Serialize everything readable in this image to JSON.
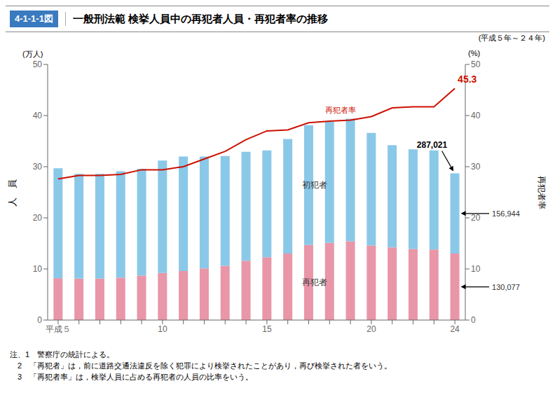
{
  "chart_data": {
    "type": "bar",
    "title_box": "4-1-1-1図",
    "title": "一般刑法範 検挙人員中の再犯者人員・再犯者率の推移",
    "subtitle": "(平成５年～２４年)",
    "ylabel": "人　員",
    "ylabel_unit": "(万人)",
    "y2label": "再犯者率",
    "y2label_unit": "(%)",
    "categories": [
      "平成５",
      null,
      null,
      null,
      null,
      "10",
      null,
      null,
      null,
      null,
      "15",
      null,
      null,
      null,
      null,
      "20",
      null,
      null,
      null,
      "24"
    ],
    "series": [
      {
        "name": "再犯者",
        "color": "#E896A8",
        "values": [
          8.2,
          8.1,
          8.1,
          8.3,
          8.7,
          9.2,
          9.6,
          10.1,
          10.6,
          11.6,
          12.3,
          13.0,
          14.7,
          15.1,
          15.4,
          14.6,
          14.2,
          13.9,
          13.8,
          13.0
        ]
      },
      {
        "name": "初犯者",
        "color": "#8AC8E8",
        "values": [
          21.5,
          20.5,
          20.5,
          20.8,
          20.9,
          22.0,
          22.4,
          21.9,
          21.5,
          21.3,
          20.9,
          22.4,
          23.4,
          23.7,
          24.0,
          22.0,
          20.0,
          19.5,
          19.4,
          15.7
        ]
      },
      {
        "name": "再犯者率",
        "color": "#CC1100",
        "type": "line",
        "axis": "y2",
        "values": [
          27.6,
          28.3,
          28.3,
          28.5,
          29.4,
          29.4,
          30.0,
          31.5,
          33.0,
          35.3,
          37.0,
          37.2,
          38.6,
          38.9,
          39.1,
          39.8,
          41.5,
          41.7,
          41.7,
          45.3
        ]
      }
    ],
    "stacked": true,
    "ylim": [
      0,
      50
    ],
    "yticks": [
      0,
      10,
      20,
      30,
      40,
      50
    ],
    "y2lim": [
      0,
      50
    ],
    "y2ticks": [
      0,
      10,
      20,
      30,
      40,
      50
    ],
    "grid": false,
    "annotations": {
      "last_total": "287,021",
      "last_first": "156,944",
      "last_recid": "130,077",
      "last_rate": "45.3"
    },
    "notes": [
      "注、1　警察庁の統計による。",
      "　2　「再犯者」は，前に道路交通法違反を除く犯罪により検挙されたことがあり，再び検挙された者をいう。",
      "　3　「再犯者率」は，検挙人員に占める再犯者の人員の比率をいう。"
    ]
  }
}
